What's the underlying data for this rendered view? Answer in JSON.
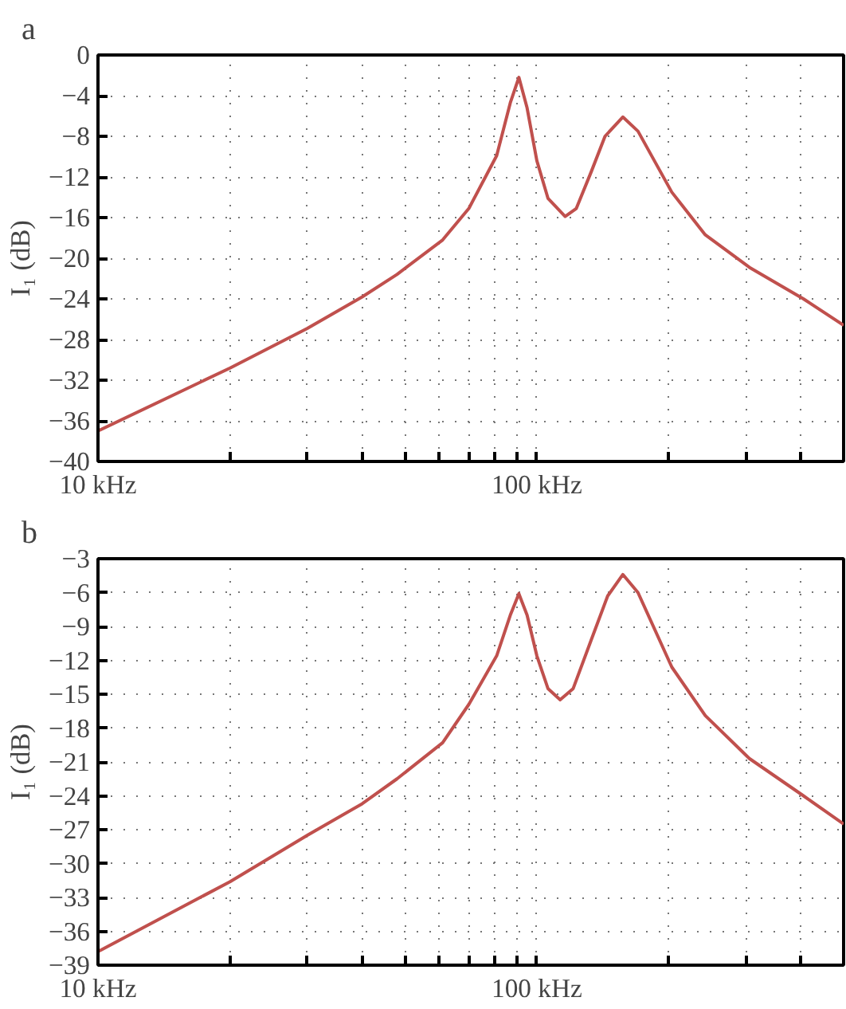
{
  "chart_data": [
    {
      "type": "line",
      "title": "a",
      "ylabel": "I₁ (dB)",
      "log": "x",
      "grid": true,
      "line_style": "solid",
      "marker": "none",
      "xlim": [
        10,
        500
      ],
      "ylim": [
        -40,
        0
      ],
      "xticks": [
        {
          "value": 10,
          "label": "10 kHz"
        },
        {
          "value": 20,
          "label": null
        },
        {
          "value": 30,
          "label": null
        },
        {
          "value": 40,
          "label": null
        },
        {
          "value": 50,
          "label": null
        },
        {
          "value": 60,
          "label": null
        },
        {
          "value": 70,
          "label": null
        },
        {
          "value": 80,
          "label": null
        },
        {
          "value": 90,
          "label": null
        },
        {
          "value": 100,
          "label": "100 kHz"
        },
        {
          "value": 200,
          "label": null
        },
        {
          "value": 300,
          "label": null
        },
        {
          "value": 400,
          "label": null
        }
      ],
      "yticks": [
        0,
        -4,
        -8,
        -12,
        -16,
        -20,
        -24,
        -28,
        -32,
        -36,
        -40
      ],
      "series": [
        {
          "color": "#c0504d",
          "x": [
            10,
            20,
            30,
            40,
            48,
            61,
            70,
            81,
            87,
            91,
            95,
            100,
            106,
            116,
            123,
            133,
            143,
            157,
            170,
            203,
            242,
            305,
            405,
            500
          ],
          "values": [
            -37.0,
            -30.8,
            -26.9,
            -23.8,
            -21.6,
            -18.2,
            -15.1,
            -9.9,
            -4.7,
            -2.2,
            -5.2,
            -10.4,
            -14.1,
            -15.9,
            -15.1,
            -11.5,
            -8.0,
            -6.1,
            -7.5,
            -13.5,
            -17.7,
            -20.9,
            -24.0,
            -26.6
          ]
        }
      ]
    },
    {
      "type": "line",
      "title": "b",
      "ylabel": "I₁ (dB)",
      "log": "x",
      "grid": true,
      "line_style": "solid",
      "marker": "none",
      "xlim": [
        10,
        500
      ],
      "ylim": [
        -39,
        -3
      ],
      "xticks": [
        {
          "value": 10,
          "label": "10 kHz"
        },
        {
          "value": 20,
          "label": null
        },
        {
          "value": 30,
          "label": null
        },
        {
          "value": 40,
          "label": null
        },
        {
          "value": 50,
          "label": null
        },
        {
          "value": 60,
          "label": null
        },
        {
          "value": 70,
          "label": null
        },
        {
          "value": 80,
          "label": null
        },
        {
          "value": 90,
          "label": null
        },
        {
          "value": 100,
          "label": "100 kHz"
        },
        {
          "value": 200,
          "label": null
        },
        {
          "value": 300,
          "label": null
        },
        {
          "value": 400,
          "label": null
        }
      ],
      "yticks": [
        -3,
        -6,
        -9,
        -12,
        -15,
        -18,
        -21,
        -24,
        -27,
        -30,
        -33,
        -36,
        -39
      ],
      "series": [
        {
          "color": "#c0504d",
          "x": [
            10,
            20,
            30,
            40,
            48,
            61,
            70,
            81,
            87,
            91,
            95,
            100,
            106,
            113,
            121,
            133,
            145,
            157,
            170,
            203,
            242,
            305,
            405,
            500
          ],
          "values": [
            -37.8,
            -31.6,
            -27.5,
            -24.7,
            -22.5,
            -19.3,
            -15.9,
            -11.6,
            -8.0,
            -6.1,
            -8.0,
            -11.6,
            -14.5,
            -15.5,
            -14.5,
            -10.2,
            -6.3,
            -4.4,
            -6.0,
            -12.6,
            -16.9,
            -20.7,
            -24.0,
            -26.5
          ]
        }
      ]
    }
  ]
}
